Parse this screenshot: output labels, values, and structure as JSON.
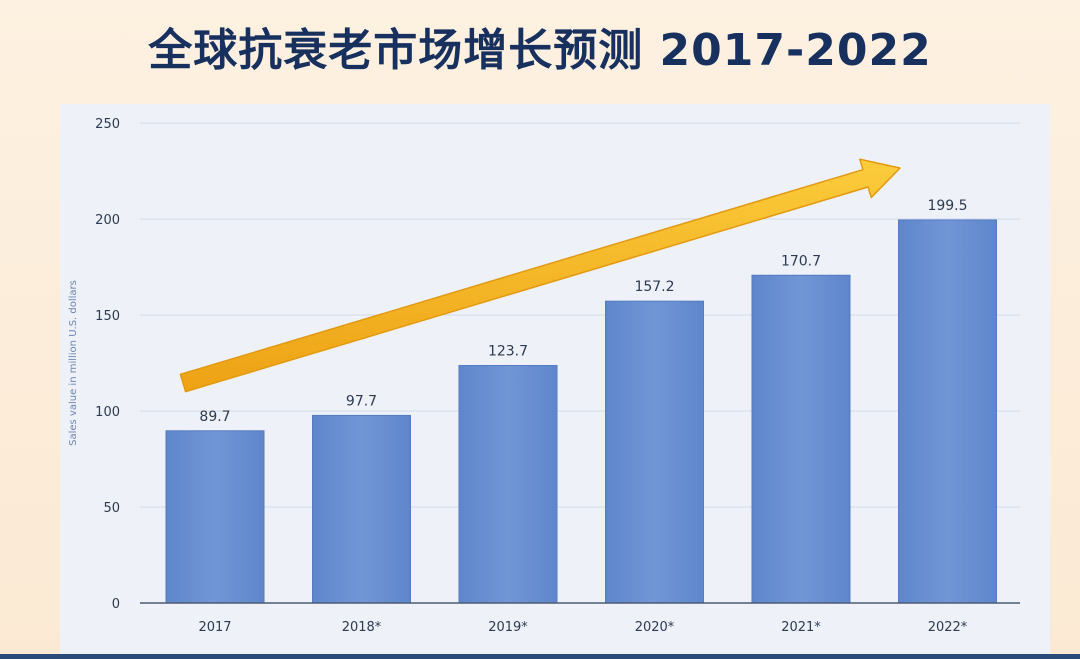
{
  "title": "全球抗衰老市场增长预测 2017-2022",
  "chart_data": {
    "type": "bar",
    "categories": [
      "2017",
      "2018*",
      "2019*",
      "2020*",
      "2021*",
      "2022*"
    ],
    "values": [
      89.7,
      97.7,
      123.7,
      157.2,
      170.7,
      199.5
    ],
    "value_labels": [
      "89.7",
      "97.7",
      "123.7",
      "157.2",
      "170.7",
      "199.5"
    ],
    "ylabel": "Sales value in million U.S. dollars",
    "ylim": [
      0,
      250
    ],
    "yticks": [
      0,
      50,
      100,
      150,
      200,
      250
    ],
    "grid": true,
    "legend": "none",
    "trend_arrow": true,
    "colors": {
      "bar": "#6b8fd0",
      "bar_edge": "#557bc2",
      "arrow": "#f7b924",
      "arrow_edge": "#e39a10",
      "grid": "#d3dae8",
      "axis": "#4c5a72",
      "title": "#17305e"
    }
  }
}
